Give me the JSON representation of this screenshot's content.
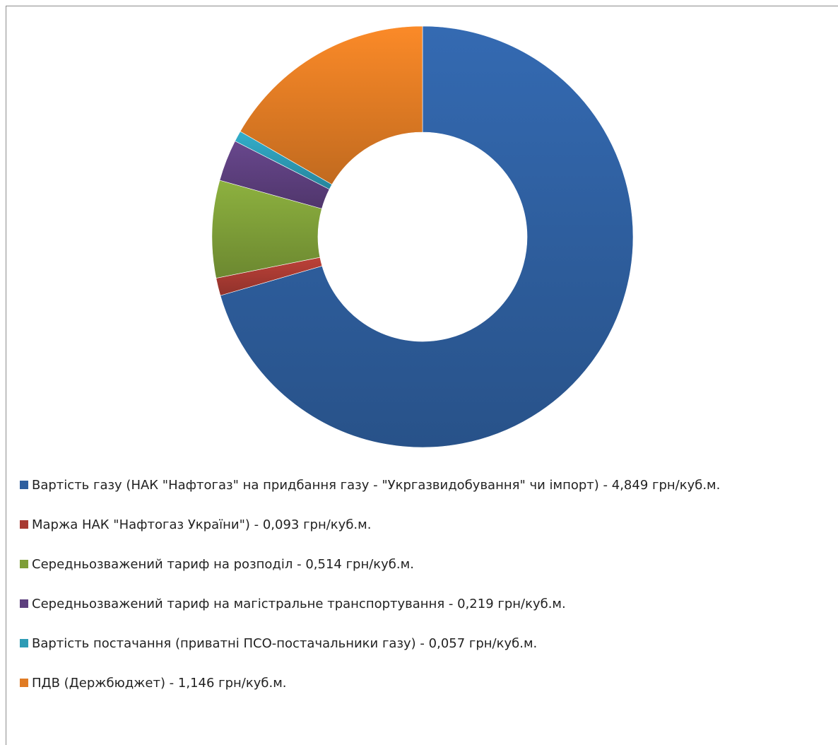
{
  "chart_data": {
    "type": "pie",
    "donut": true,
    "legend_position": "bottom",
    "unit": "грн/куб.м.",
    "slices": [
      {
        "label": "Вартість газу (НАК \"Нафтогаз\" на придбання газу - \"Укргазвидобування\" чи імпорт) - 4,849 грн/куб.м.",
        "value": 4.849,
        "color": "#2e5f9f"
      },
      {
        "label": "Маржа НАК \"Нафтогаз України\") - 0,093 грн/куб.м.",
        "value": 0.093,
        "color": "#a83a32"
      },
      {
        "label": "Середньозважений тариф на розподіл - 0,514 грн/куб.м.",
        "value": 0.514,
        "color": "#7e9e38"
      },
      {
        "label": "Середньозважений тариф на магістральне транспортування - 0,219 грн/куб.м.",
        "value": 0.219,
        "color": "#5d3f7e"
      },
      {
        "label": "Вартість постачання (приватні ПСО-постачальники газу) - 0,057 грн/куб.м.",
        "value": 0.057,
        "color": "#2d9bb5"
      },
      {
        "label": "ПДВ (Держбюджет) - 1,146 грн/куб.м.",
        "value": 1.146,
        "color": "#e07b24"
      }
    ]
  }
}
